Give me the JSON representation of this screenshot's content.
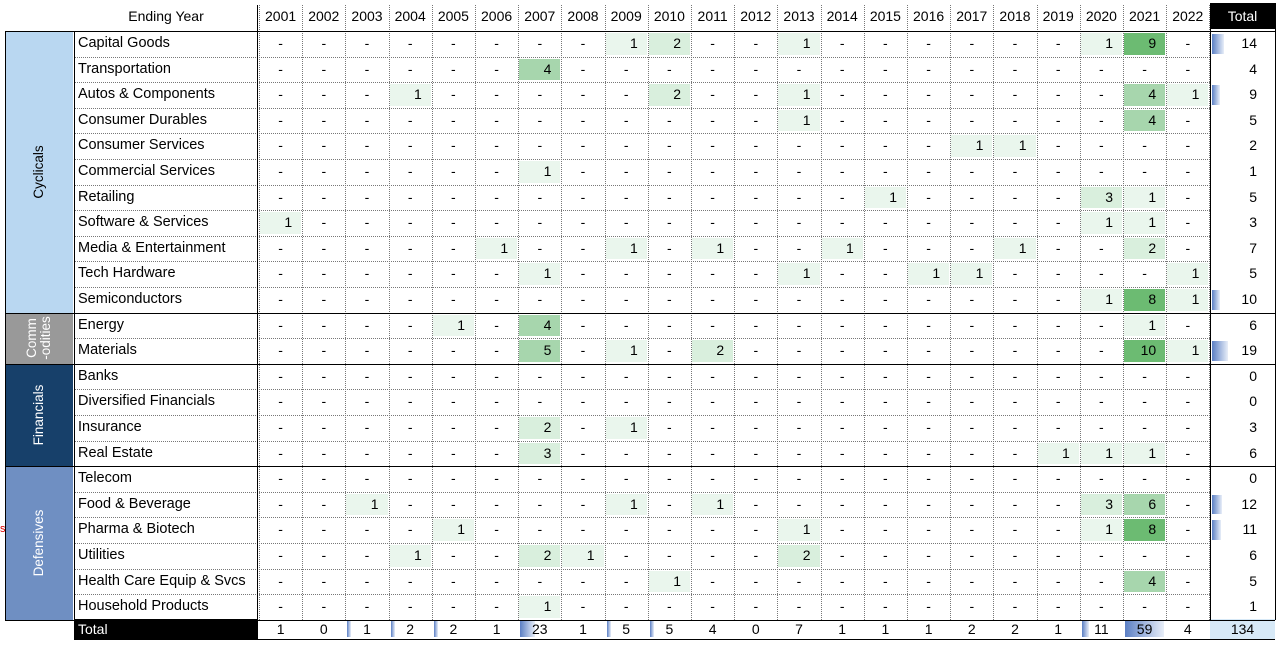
{
  "header": {
    "label": "Ending Year",
    "total_label": "Total"
  },
  "years": [
    "2001",
    "2002",
    "2003",
    "2004",
    "2005",
    "2006",
    "2007",
    "2008",
    "2009",
    "2010",
    "2011",
    "2012",
    "2013",
    "2014",
    "2015",
    "2016",
    "2017",
    "2018",
    "2019",
    "2020",
    "2021",
    "2022"
  ],
  "groups": [
    {
      "name": "Cyclicals",
      "color": "#b9d7f1",
      "text_color": "#000000",
      "rows": 11
    },
    {
      "name": "Comm\n-odities",
      "color": "#999999",
      "text_color": "#ffffff",
      "rows": 2
    },
    {
      "name": "Financials",
      "color": "#17406a",
      "text_color": "#ffffff",
      "rows": 4
    },
    {
      "name": "Defensives",
      "color": "#6f8fc2",
      "text_color": "#ffffff",
      "rows": 6
    }
  ],
  "rows": [
    {
      "label": "Capital Goods",
      "values": [
        0,
        0,
        0,
        0,
        0,
        0,
        0,
        0,
        1,
        2,
        0,
        0,
        1,
        0,
        0,
        0,
        0,
        0,
        0,
        1,
        9,
        0
      ],
      "total": 14
    },
    {
      "label": "Transportation",
      "values": [
        0,
        0,
        0,
        0,
        0,
        0,
        4,
        0,
        0,
        0,
        0,
        0,
        0,
        0,
        0,
        0,
        0,
        0,
        0,
        0,
        0,
        0
      ],
      "total": 4
    },
    {
      "label": "Autos & Components",
      "values": [
        0,
        0,
        0,
        1,
        0,
        0,
        0,
        0,
        0,
        2,
        0,
        0,
        1,
        0,
        0,
        0,
        0,
        0,
        0,
        0,
        4,
        1
      ],
      "total": 9
    },
    {
      "label": "Consumer Durables",
      "values": [
        0,
        0,
        0,
        0,
        0,
        0,
        0,
        0,
        0,
        0,
        0,
        0,
        1,
        0,
        0,
        0,
        0,
        0,
        0,
        0,
        4,
        0
      ],
      "total": 5
    },
    {
      "label": "Consumer Services",
      "values": [
        0,
        0,
        0,
        0,
        0,
        0,
        0,
        0,
        0,
        0,
        0,
        0,
        0,
        0,
        0,
        0,
        1,
        1,
        0,
        0,
        0,
        0
      ],
      "total": 2
    },
    {
      "label": "Commercial Services",
      "values": [
        0,
        0,
        0,
        0,
        0,
        0,
        1,
        0,
        0,
        0,
        0,
        0,
        0,
        0,
        0,
        0,
        0,
        0,
        0,
        0,
        0,
        0
      ],
      "total": 1
    },
    {
      "label": "Retailing",
      "values": [
        0,
        0,
        0,
        0,
        0,
        0,
        0,
        0,
        0,
        0,
        0,
        0,
        0,
        0,
        1,
        0,
        0,
        0,
        0,
        3,
        1,
        0
      ],
      "total": 5
    },
    {
      "label": "Software & Services",
      "values": [
        1,
        0,
        0,
        0,
        0,
        0,
        0,
        0,
        0,
        0,
        0,
        0,
        0,
        0,
        0,
        0,
        0,
        0,
        0,
        1,
        1,
        0
      ],
      "total": 3
    },
    {
      "label": "Media & Entertainment",
      "values": [
        0,
        0,
        0,
        0,
        0,
        1,
        0,
        0,
        1,
        0,
        1,
        0,
        0,
        1,
        0,
        0,
        0,
        1,
        0,
        0,
        2,
        0
      ],
      "total": 7
    },
    {
      "label": "Tech Hardware",
      "values": [
        0,
        0,
        0,
        0,
        0,
        0,
        1,
        0,
        0,
        0,
        0,
        0,
        1,
        0,
        0,
        1,
        1,
        0,
        0,
        0,
        0,
        1
      ],
      "total": 5
    },
    {
      "label": "Semiconductors",
      "values": [
        0,
        0,
        0,
        0,
        0,
        0,
        0,
        0,
        0,
        0,
        0,
        0,
        0,
        0,
        0,
        0,
        0,
        0,
        0,
        1,
        8,
        1
      ],
      "total": 10
    },
    {
      "label": "Energy",
      "values": [
        0,
        0,
        0,
        0,
        1,
        0,
        4,
        0,
        0,
        0,
        0,
        0,
        0,
        0,
        0,
        0,
        0,
        0,
        0,
        0,
        1,
        0
      ],
      "total": 6
    },
    {
      "label": "Materials",
      "values": [
        0,
        0,
        0,
        0,
        0,
        0,
        5,
        0,
        1,
        0,
        2,
        0,
        0,
        0,
        0,
        0,
        0,
        0,
        0,
        0,
        10,
        1
      ],
      "total": 19
    },
    {
      "label": "Banks",
      "values": [
        0,
        0,
        0,
        0,
        0,
        0,
        0,
        0,
        0,
        0,
        0,
        0,
        0,
        0,
        0,
        0,
        0,
        0,
        0,
        0,
        0,
        0
      ],
      "total": 0
    },
    {
      "label": "Diversified Financials",
      "values": [
        0,
        0,
        0,
        0,
        0,
        0,
        0,
        0,
        0,
        0,
        0,
        0,
        0,
        0,
        0,
        0,
        0,
        0,
        0,
        0,
        0,
        0
      ],
      "total": 0
    },
    {
      "label": "Insurance",
      "values": [
        0,
        0,
        0,
        0,
        0,
        0,
        2,
        0,
        1,
        0,
        0,
        0,
        0,
        0,
        0,
        0,
        0,
        0,
        0,
        0,
        0,
        0
      ],
      "total": 3
    },
    {
      "label": "Real Estate",
      "values": [
        0,
        0,
        0,
        0,
        0,
        0,
        3,
        0,
        0,
        0,
        0,
        0,
        0,
        0,
        0,
        0,
        0,
        0,
        1,
        1,
        1,
        0
      ],
      "total": 6
    },
    {
      "label": "Telecom",
      "values": [
        0,
        0,
        0,
        0,
        0,
        0,
        0,
        0,
        0,
        0,
        0,
        0,
        0,
        0,
        0,
        0,
        0,
        0,
        0,
        0,
        0,
        0
      ],
      "total": 0
    },
    {
      "label": "Food & Beverage",
      "values": [
        0,
        0,
        1,
        0,
        0,
        0,
        0,
        0,
        1,
        0,
        1,
        0,
        0,
        0,
        0,
        0,
        0,
        0,
        0,
        3,
        6,
        0
      ],
      "total": 12
    },
    {
      "label": "Pharma & Biotech",
      "values": [
        0,
        0,
        0,
        0,
        1,
        0,
        0,
        0,
        0,
        0,
        0,
        0,
        1,
        0,
        0,
        0,
        0,
        0,
        0,
        1,
        8,
        0
      ],
      "total": 11
    },
    {
      "label": "Utilities",
      "values": [
        0,
        0,
        0,
        1,
        0,
        0,
        2,
        1,
        0,
        0,
        0,
        0,
        2,
        0,
        0,
        0,
        0,
        0,
        0,
        0,
        0,
        0
      ],
      "total": 6
    },
    {
      "label": "Health Care Equip & Svcs",
      "values": [
        0,
        0,
        0,
        0,
        0,
        0,
        0,
        0,
        0,
        1,
        0,
        0,
        0,
        0,
        0,
        0,
        0,
        0,
        0,
        0,
        4,
        0
      ],
      "total": 5
    },
    {
      "label": "Household Products",
      "values": [
        0,
        0,
        0,
        0,
        0,
        0,
        1,
        0,
        0,
        0,
        0,
        0,
        0,
        0,
        0,
        0,
        0,
        0,
        0,
        0,
        0,
        0
      ],
      "total": 1
    }
  ],
  "totals_row": {
    "label": "Total",
    "values": [
      1,
      0,
      1,
      2,
      2,
      1,
      23,
      1,
      5,
      5,
      4,
      0,
      7,
      1,
      1,
      1,
      2,
      2,
      1,
      11,
      59,
      4
    ],
    "grand_total": 134
  },
  "dash": "-",
  "stray_mark": "s",
  "colors": {
    "cell_pale": "#eaf6ed",
    "cell_light": "#d9efdd",
    "cell_mid": "#a7d6ad",
    "cell_strong": "#6cbb72",
    "grand_total_bg": "#d7e9f7"
  }
}
